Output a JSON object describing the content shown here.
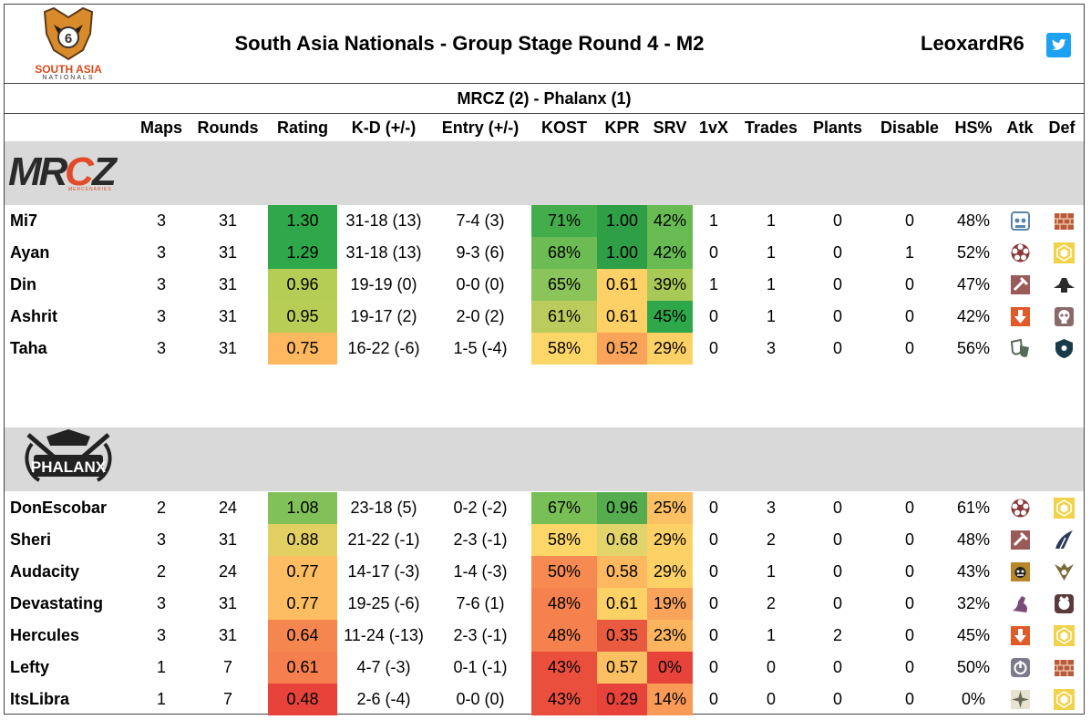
{
  "header": {
    "logo_text_line1": "SOUTH ASIA",
    "logo_text_line2": "NATIONALS",
    "title": "South Asia Nationals - Group Stage Round 4 - M2",
    "handle": "LeoxardR6",
    "match": "MRCZ (2) - Phalanx (1)"
  },
  "columns": [
    "Maps",
    "Rounds",
    "Rating",
    "K-D (+/-)",
    "Entry (+/-)",
    "KOST",
    "KPR",
    "SRV",
    "1vX",
    "Trades",
    "Plants",
    "Disable",
    "HS%",
    "Atk",
    "Def"
  ],
  "teams": [
    {
      "logo_text": "MRCZ",
      "logo_subtext": "MERCENARIES",
      "players": [
        {
          "name": "Mi7",
          "maps": "3",
          "rounds": "31",
          "rating": "1.30",
          "kd": "31-18 (13)",
          "entry": "7-4 (3)",
          "kost": "71%",
          "kpr": "1.00",
          "srv": "42%",
          "onevx": "1",
          "trades": "1",
          "plants": "0",
          "disable": "0",
          "hs": "48%",
          "atk_icon": "operator-icon-mask",
          "def_icon": "operator-icon-brick-wall",
          "rating_color": "#2ea84a",
          "kost_color": "#43ad4c",
          "kpr_color": "#2e9e47",
          "srv_color": "#68bb52",
          "atk_color": "#5a84a8",
          "def_color": "#b85a3c"
        },
        {
          "name": "Ayan",
          "maps": "3",
          "rounds": "31",
          "rating": "1.29",
          "kd": "31-18 (13)",
          "entry": "9-3 (6)",
          "kost": "68%",
          "kpr": "1.00",
          "srv": "42%",
          "onevx": "0",
          "trades": "1",
          "plants": "0",
          "disable": "1",
          "hs": "52%",
          "atk_icon": "operator-icon-flower",
          "def_icon": "operator-icon-hex",
          "rating_color": "#2ea84a",
          "kost_color": "#6cbc53",
          "kpr_color": "#2e9e47",
          "srv_color": "#68bb52",
          "atk_color": "#8a3a3a",
          "def_color": "#f2d24a"
        },
        {
          "name": "Din",
          "maps": "3",
          "rounds": "31",
          "rating": "0.96",
          "kd": "19-19 (0)",
          "entry": "0-0 (0)",
          "kost": "65%",
          "kpr": "0.61",
          "srv": "39%",
          "onevx": "1",
          "trades": "1",
          "plants": "0",
          "disable": "0",
          "hs": "47%",
          "atk_icon": "operator-icon-hammer",
          "def_icon": "operator-icon-hat",
          "rating_color": "#b5cc55",
          "kost_color": "#8ac45a",
          "kpr_color": "#fed166",
          "srv_color": "#a9c957",
          "atk_color": "#9a5a5a",
          "def_color": "#2a2a2a"
        },
        {
          "name": "Ashrit",
          "maps": "3",
          "rounds": "31",
          "rating": "0.95",
          "kd": "19-17 (2)",
          "entry": "2-0 (2)",
          "kost": "61%",
          "kpr": "0.61",
          "srv": "45%",
          "onevx": "0",
          "trades": "1",
          "plants": "0",
          "disable": "0",
          "hs": "42%",
          "atk_icon": "operator-icon-arrow",
          "def_icon": "operator-icon-skull",
          "rating_color": "#b8cd56",
          "kost_color": "#bccc5c",
          "kpr_color": "#fed166",
          "srv_color": "#2ea84a",
          "atk_color": "#e05a2a",
          "def_color": "#8a6a6a"
        },
        {
          "name": "Taha",
          "maps": "3",
          "rounds": "31",
          "rating": "0.75",
          "kd": "16-22 (-6)",
          "entry": "1-5 (-4)",
          "kost": "58%",
          "kpr": "0.52",
          "srv": "29%",
          "onevx": "0",
          "trades": "3",
          "plants": "0",
          "disable": "0",
          "hs": "56%",
          "atk_icon": "operator-icon-masks",
          "def_icon": "operator-icon-shield",
          "rating_color": "#fdb860",
          "kost_color": "#fcd667",
          "kpr_color": "#f9a45a",
          "srv_color": "#fed166",
          "atk_color": "#5a6a5a",
          "def_color": "#1a3a4a"
        }
      ]
    },
    {
      "logo_text": "PHALANX",
      "players": [
        {
          "name": "DonEscobar",
          "maps": "2",
          "rounds": "24",
          "rating": "1.08",
          "kd": "23-18 (5)",
          "entry": "0-2 (-2)",
          "kost": "67%",
          "kpr": "0.96",
          "srv": "25%",
          "onevx": "0",
          "trades": "3",
          "plants": "0",
          "disable": "0",
          "hs": "61%",
          "atk_icon": "operator-icon-flower",
          "def_icon": "operator-icon-hex",
          "rating_color": "#82c05a",
          "kost_color": "#78bf55",
          "kpr_color": "#56ad50",
          "srv_color": "#fdc062",
          "atk_color": "#8a3a3a",
          "def_color": "#f2d24a"
        },
        {
          "name": "Sheri",
          "maps": "3",
          "rounds": "31",
          "rating": "0.88",
          "kd": "21-22 (-1)",
          "entry": "2-3 (-1)",
          "kost": "58%",
          "kpr": "0.68",
          "srv": "29%",
          "onevx": "0",
          "trades": "2",
          "plants": "0",
          "disable": "0",
          "hs": "48%",
          "atk_icon": "operator-icon-hammer",
          "def_icon": "operator-icon-feathers",
          "rating_color": "#e3d063",
          "kost_color": "#fcd667",
          "kpr_color": "#e0d46a",
          "srv_color": "#fed166",
          "atk_color": "#9a5a5a",
          "def_color": "#2a3a5a"
        },
        {
          "name": "Audacity",
          "maps": "2",
          "rounds": "24",
          "rating": "0.77",
          "kd": "14-17 (-3)",
          "entry": "1-4 (-3)",
          "kost": "50%",
          "kpr": "0.58",
          "srv": "29%",
          "onevx": "0",
          "trades": "1",
          "plants": "0",
          "disable": "0",
          "hs": "43%",
          "atk_icon": "operator-icon-jester",
          "def_icon": "operator-icon-wings",
          "rating_color": "#fdbd62",
          "kost_color": "#f78a50",
          "kpr_color": "#fdb860",
          "srv_color": "#fed166",
          "atk_color": "#b8862a",
          "def_color": "#7a6a3a"
        },
        {
          "name": "Devastating",
          "maps": "3",
          "rounds": "31",
          "rating": "0.77",
          "kd": "19-25 (-6)",
          "entry": "7-6 (1)",
          "kost": "48%",
          "kpr": "0.61",
          "srv": "19%",
          "onevx": "0",
          "trades": "2",
          "plants": "0",
          "disable": "0",
          "hs": "32%",
          "atk_icon": "operator-icon-fist",
          "def_icon": "operator-icon-crown-skull",
          "rating_color": "#fdbd62",
          "kost_color": "#f5814e",
          "kpr_color": "#fed166",
          "srv_color": "#f9a45a",
          "atk_color": "#7a4a7a",
          "def_color": "#5a3a3a"
        },
        {
          "name": "Hercules",
          "maps": "3",
          "rounds": "31",
          "rating": "0.64",
          "kd": "11-24 (-13)",
          "entry": "2-3 (-1)",
          "kost": "48%",
          "kpr": "0.35",
          "srv": "23%",
          "onevx": "0",
          "trades": "1",
          "plants": "2",
          "disable": "0",
          "hs": "45%",
          "atk_icon": "operator-icon-arrow",
          "def_icon": "operator-icon-hex",
          "rating_color": "#f6864f",
          "kost_color": "#f5814e",
          "kpr_color": "#ea5a40",
          "srv_color": "#fcb55e",
          "atk_color": "#e05a2a",
          "def_color": "#f2d24a"
        },
        {
          "name": "Lefty",
          "maps": "1",
          "rounds": "7",
          "rating": "0.61",
          "kd": "4-7 (-3)",
          "entry": "0-1 (-1)",
          "kost": "43%",
          "kpr": "0.57",
          "srv": "0%",
          "onevx": "0",
          "trades": "0",
          "plants": "0",
          "disable": "0",
          "hs": "50%",
          "atk_icon": "operator-icon-power",
          "def_icon": "operator-icon-brick-wall",
          "rating_color": "#f57f4e",
          "kost_color": "#ea4f3e",
          "kpr_color": "#fcc063",
          "srv_color": "#e8433b",
          "atk_color": "#7a7a8a",
          "def_color": "#b85a3c"
        },
        {
          "name": "ItsLibra",
          "maps": "1",
          "rounds": "7",
          "rating": "0.48",
          "kd": "2-6 (-4)",
          "entry": "0-0 (0)",
          "kost": "43%",
          "kpr": "0.29",
          "srv": "14%",
          "onevx": "0",
          "trades": "0",
          "plants": "0",
          "disable": "0",
          "hs": "0%",
          "atk_icon": "operator-icon-compass",
          "def_icon": "operator-icon-hex",
          "rating_color": "#e8433b",
          "kost_color": "#ea4f3e",
          "kpr_color": "#e8433b",
          "srv_color": "#f99a57",
          "atk_color": "#6a6a5a",
          "def_color": "#f2d24a"
        }
      ]
    }
  ]
}
